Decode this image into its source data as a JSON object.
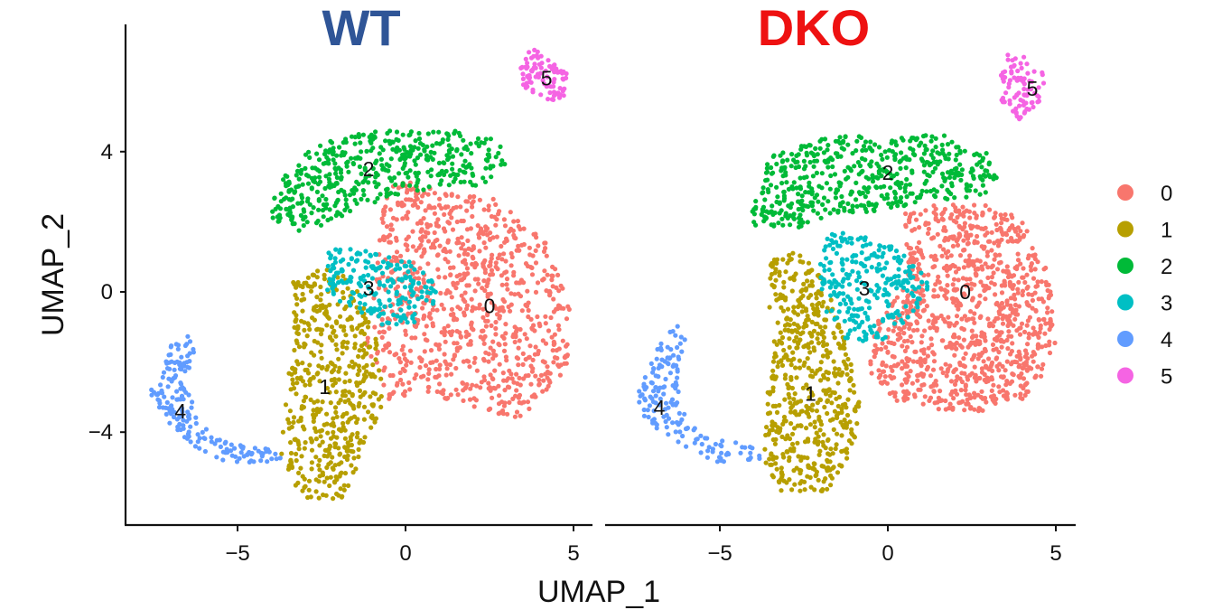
{
  "chart_data": {
    "type": "scatter",
    "xlabel": "UMAP_1",
    "ylabel": "UMAP_2",
    "xlim": [
      -8.3,
      5.6
    ],
    "ylim": [
      -6.8,
      7.7
    ],
    "x_ticks": [
      -5,
      0,
      5
    ],
    "x_tick_labels": [
      "−5",
      "0",
      "5"
    ],
    "y_ticks": [
      -4,
      0,
      4
    ],
    "y_tick_labels": [
      "−4",
      "0",
      "4"
    ],
    "grid": false,
    "legend_position": "right",
    "legend": [
      {
        "label": "0",
        "color": "#F8766D"
      },
      {
        "label": "1",
        "color": "#B79F00"
      },
      {
        "label": "2",
        "color": "#00BA38"
      },
      {
        "label": "3",
        "color": "#00BFC4"
      },
      {
        "label": "4",
        "color": "#619CFF"
      },
      {
        "label": "5",
        "color": "#F564E3"
      }
    ],
    "panels": [
      {
        "title": "WT",
        "title_color": "#2F5597",
        "cluster_labels": [
          {
            "label": "0",
            "x": 2.5,
            "y": -0.4
          },
          {
            "label": "1",
            "x": -2.4,
            "y": -2.7
          },
          {
            "label": "2",
            "x": -1.1,
            "y": 3.5
          },
          {
            "label": "3",
            "x": -1.1,
            "y": 0.1
          },
          {
            "label": "4",
            "x": -6.7,
            "y": -3.4
          },
          {
            "label": "5",
            "x": 4.2,
            "y": 6.1
          }
        ],
        "clusters": [
          {
            "cluster": "0",
            "points": 900,
            "shape": [
              [
                -0.2,
                3.3
              ],
              [
                2.8,
                2.6
              ],
              [
                4.2,
                1.4
              ],
              [
                4.9,
                -0.2
              ],
              [
                4.8,
                -2.4
              ],
              [
                3.4,
                -3.6
              ],
              [
                1.9,
                -3.3
              ],
              [
                0.7,
                -2.9
              ],
              [
                -0.6,
                -3.1
              ],
              [
                -1.2,
                -1.4
              ],
              [
                -0.9,
                0.2
              ],
              [
                -0.7,
                2.5
              ]
            ]
          },
          {
            "cluster": "1",
            "points": 500,
            "shape": [
              [
                -3.4,
                0.3
              ],
              [
                -2.4,
                0.7
              ],
              [
                -1.6,
                0.4
              ],
              [
                -0.9,
                -1.2
              ],
              [
                -0.6,
                -3.2
              ],
              [
                -1.2,
                -4.4
              ],
              [
                -1.8,
                -5.9
              ],
              [
                -3.1,
                -5.9
              ],
              [
                -3.7,
                -4.6
              ],
              [
                -3.5,
                -2.4
              ],
              [
                -3.3,
                -0.8
              ]
            ]
          },
          {
            "cluster": "2",
            "points": 450,
            "shape": [
              [
                -4.0,
                2.6
              ],
              [
                -3.5,
                3.6
              ],
              [
                -2.4,
                4.4
              ],
              [
                -0.8,
                4.6
              ],
              [
                1.6,
                4.6
              ],
              [
                2.8,
                4.3
              ],
              [
                3.0,
                3.7
              ],
              [
                2.4,
                3.0
              ],
              [
                1.2,
                3.0
              ],
              [
                -0.4,
                2.7
              ],
              [
                -1.8,
                2.2
              ],
              [
                -3.2,
                1.6
              ],
              [
                -4.0,
                2.1
              ]
            ]
          },
          {
            "cluster": "3",
            "points": 200,
            "shape": [
              [
                -2.3,
                1.2
              ],
              [
                -1.2,
                1.3
              ],
              [
                0.3,
                0.8
              ],
              [
                1.1,
                0.0
              ],
              [
                0.4,
                -0.9
              ],
              [
                -0.6,
                -1.0
              ],
              [
                -1.6,
                -0.5
              ],
              [
                -2.4,
                0.0
              ]
            ]
          },
          {
            "cluster": "4",
            "points": 180,
            "shape": [
              [
                -6.6,
                -1.0
              ],
              [
                -6.2,
                -1.4
              ],
              [
                -6.5,
                -2.6
              ],
              [
                -6.2,
                -3.7
              ],
              [
                -5.3,
                -4.3
              ],
              [
                -4.0,
                -4.5
              ],
              [
                -3.5,
                -4.8
              ],
              [
                -5.0,
                -4.9
              ],
              [
                -5.9,
                -4.7
              ],
              [
                -7.0,
                -3.8
              ],
              [
                -7.6,
                -2.9
              ],
              [
                -7.3,
                -2.0
              ]
            ]
          },
          {
            "cluster": "5",
            "points": 90,
            "shape": [
              [
                3.8,
                7.0
              ],
              [
                4.4,
                6.5
              ],
              [
                4.9,
                6.2
              ],
              [
                4.8,
                5.6
              ],
              [
                4.2,
                5.4
              ],
              [
                3.5,
                5.8
              ],
              [
                3.4,
                6.3
              ],
              [
                3.6,
                6.8
              ]
            ]
          }
        ]
      },
      {
        "title": "DKO",
        "title_color": "#EE1111",
        "cluster_labels": [
          {
            "label": "0",
            "x": 2.3,
            "y": 0.0
          },
          {
            "label": "1",
            "x": -2.3,
            "y": -2.9
          },
          {
            "label": "2",
            "x": 0.0,
            "y": 3.4
          },
          {
            "label": "3",
            "x": -0.7,
            "y": 0.1
          },
          {
            "label": "4",
            "x": -6.8,
            "y": -3.3
          },
          {
            "label": "5",
            "x": 4.3,
            "y": 5.8
          }
        ],
        "clusters": [
          {
            "cluster": "0",
            "points": 1000,
            "shape": [
              [
                0.5,
                2.4
              ],
              [
                2.6,
                2.7
              ],
              [
                4.0,
                2.1
              ],
              [
                4.8,
                0.5
              ],
              [
                5.0,
                -1.4
              ],
              [
                4.3,
                -3.0
              ],
              [
                3.0,
                -3.4
              ],
              [
                1.5,
                -3.4
              ],
              [
                0.2,
                -3.1
              ],
              [
                -0.6,
                -2.2
              ],
              [
                -0.3,
                -0.8
              ],
              [
                0.6,
                0.4
              ]
            ]
          },
          {
            "cluster": "1",
            "points": 560,
            "shape": [
              [
                -3.6,
                0.9
              ],
              [
                -2.6,
                1.2
              ],
              [
                -1.8,
                0.4
              ],
              [
                -1.3,
                -1.4
              ],
              [
                -0.7,
                -3.3
              ],
              [
                -1.2,
                -4.8
              ],
              [
                -1.9,
                -5.8
              ],
              [
                -3.2,
                -5.8
              ],
              [
                -3.7,
                -4.8
              ],
              [
                -3.6,
                -2.8
              ],
              [
                -3.5,
                -1.0
              ]
            ]
          },
          {
            "cluster": "2",
            "points": 520,
            "shape": [
              [
                -4.1,
                2.3
              ],
              [
                -3.5,
                3.9
              ],
              [
                -2.0,
                4.4
              ],
              [
                0.0,
                4.5
              ],
              [
                1.6,
                4.5
              ],
              [
                3.0,
                4.0
              ],
              [
                3.3,
                3.2
              ],
              [
                2.7,
                2.6
              ],
              [
                1.2,
                2.6
              ],
              [
                -0.2,
                2.3
              ],
              [
                -1.6,
                2.2
              ],
              [
                -3.0,
                1.7
              ],
              [
                -4.0,
                1.9
              ]
            ]
          },
          {
            "cluster": "3",
            "points": 260,
            "shape": [
              [
                -2.0,
                1.8
              ],
              [
                -0.8,
                1.6
              ],
              [
                0.4,
                1.2
              ],
              [
                1.3,
                0.3
              ],
              [
                0.8,
                -0.6
              ],
              [
                -0.2,
                -1.4
              ],
              [
                -1.2,
                -1.4
              ],
              [
                -1.8,
                -0.8
              ],
              [
                -2.1,
                0.6
              ]
            ]
          },
          {
            "cluster": "4",
            "points": 160,
            "shape": [
              [
                -6.3,
                -0.8
              ],
              [
                -6.0,
                -1.4
              ],
              [
                -6.3,
                -2.6
              ],
              [
                -6.0,
                -3.6
              ],
              [
                -5.0,
                -4.2
              ],
              [
                -3.9,
                -4.4
              ],
              [
                -3.7,
                -4.8
              ],
              [
                -5.2,
                -4.9
              ],
              [
                -6.2,
                -4.3
              ],
              [
                -7.1,
                -3.8
              ],
              [
                -7.6,
                -3.0
              ],
              [
                -7.1,
                -2.0
              ]
            ]
          },
          {
            "cluster": "5",
            "points": 85,
            "shape": [
              [
                3.6,
                7.0
              ],
              [
                4.2,
                6.6
              ],
              [
                4.7,
                6.3
              ],
              [
                4.6,
                5.5
              ],
              [
                4.1,
                5.0
              ],
              [
                3.7,
                4.8
              ],
              [
                3.3,
                5.6
              ],
              [
                3.4,
                6.5
              ]
            ]
          }
        ]
      }
    ]
  }
}
